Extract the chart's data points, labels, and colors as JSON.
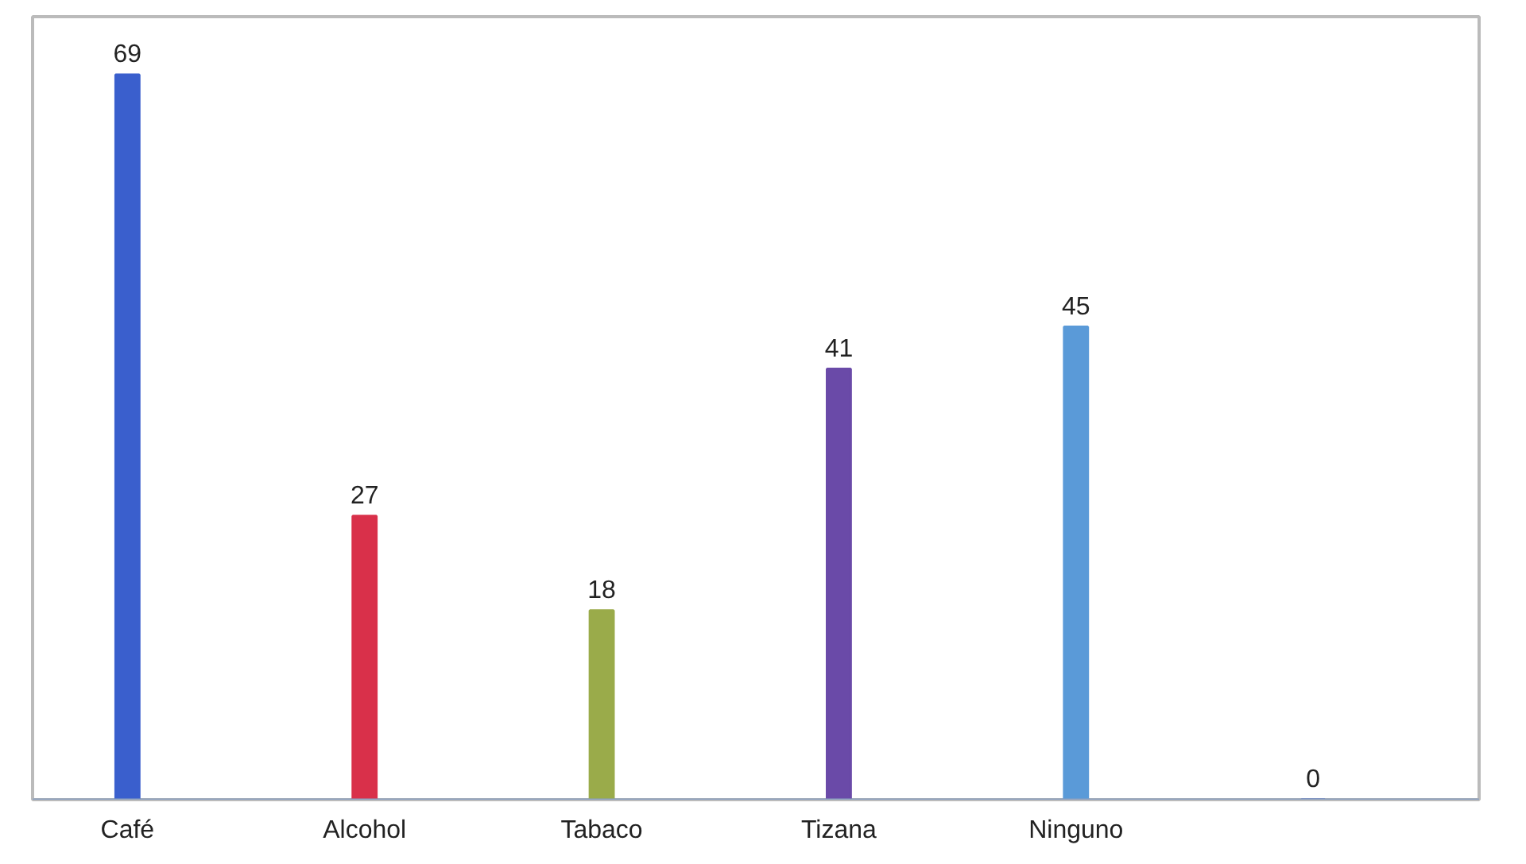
{
  "chart_data": {
    "type": "bar",
    "categories": [
      "Café",
      "Alcohol",
      "Tabaco",
      "Tizana",
      "Ninguno",
      null
    ],
    "values": [
      69,
      27,
      18,
      41,
      45,
      0
    ],
    "colors": [
      "#3a5fcd",
      "#d9304a",
      "#9aab4a",
      "#6a4aa8",
      "#5a9ad8",
      "#3a5fcd"
    ],
    "data_labels": true,
    "grid": false
  }
}
